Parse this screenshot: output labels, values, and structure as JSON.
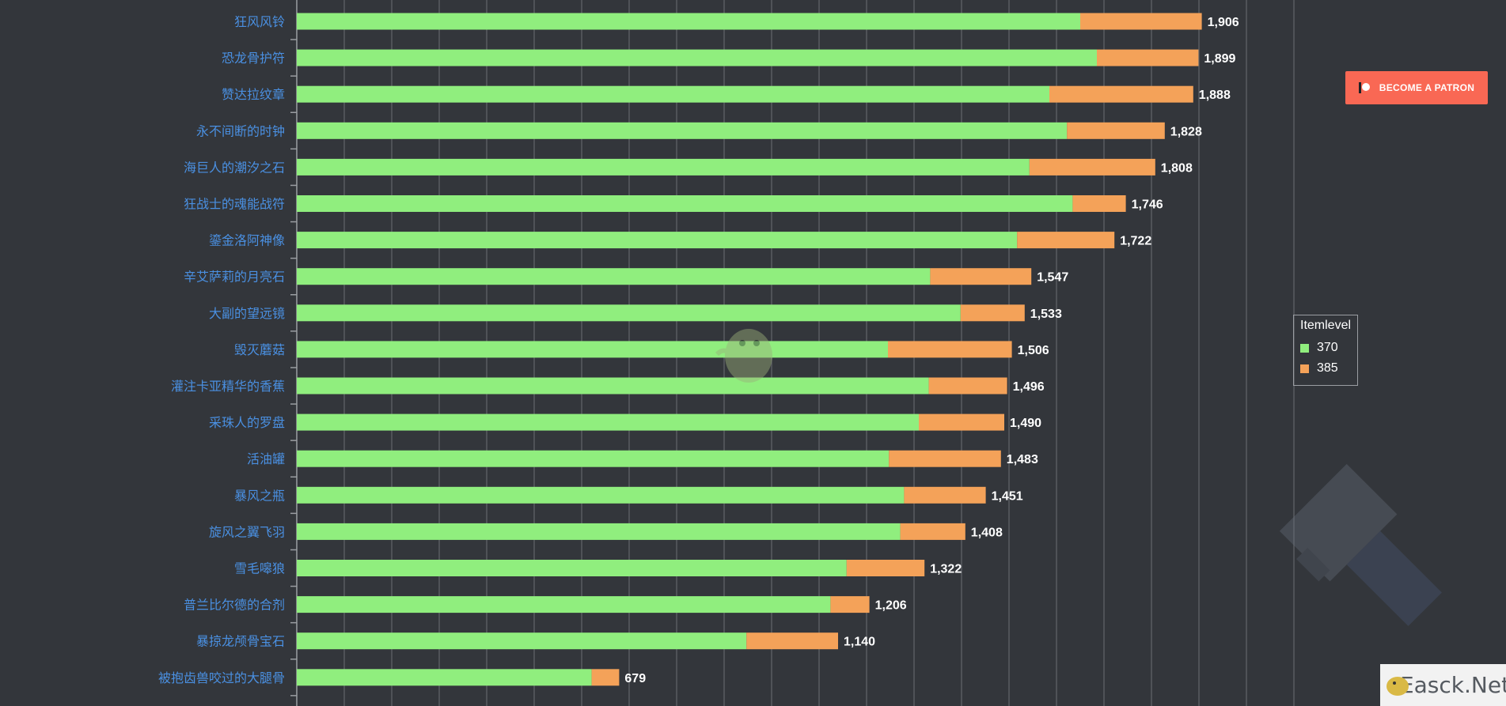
{
  "chart_data": {
    "type": "bar",
    "orientation": "horizontal",
    "stacked": true,
    "categories": [
      "狂风风铃",
      "恐龙骨护符",
      "赞达拉纹章",
      "永不间断的时钟",
      "海巨人的潮汐之石",
      "狂战士的魂能战符",
      "鎏金洛阿神像",
      "辛艾萨莉的月亮石",
      "大副的望远镜",
      "毁灭蘑菇",
      "灌注卡亚精华的香蕉",
      "采珠人的罗盘",
      "活油罐",
      "暴风之瓶",
      "旋风之翼飞羽",
      "雪毛嗥狼",
      "普兰比尔德的合剂",
      "暴掠龙颅骨宝石",
      "被抱齿兽咬过的大腿骨"
    ],
    "series": [
      {
        "name": "370",
        "color": "#90ee7e",
        "values": [
          1650,
          1685,
          1585,
          1622,
          1543,
          1634,
          1517,
          1334,
          1398,
          1245,
          1331,
          1310,
          1247,
          1279,
          1271,
          1158,
          1124,
          947,
          621
        ]
      },
      {
        "name": "385",
        "color": "#f4a259",
        "values": [
          256,
          214,
          303,
          206,
          265,
          112,
          205,
          213,
          135,
          261,
          165,
          180,
          236,
          172,
          137,
          164,
          82,
          193,
          58
        ]
      }
    ],
    "totals": [
      "1,906",
      "1,899",
      "1,888",
      "1,828",
      "1,808",
      "1,746",
      "1,722",
      "1,547",
      "1,533",
      "1,506",
      "1,496",
      "1,490",
      "1,483",
      "1,451",
      "1,408",
      "1,322",
      "1,206",
      "1,140",
      "679"
    ],
    "xlim": [
      0,
      2100
    ],
    "grid": true,
    "legend": {
      "title": "Itemlevel",
      "position": "right",
      "entries": [
        "370",
        "385"
      ]
    }
  },
  "patron": {
    "label": "BECOME A PATRON"
  },
  "watermark": {
    "text": "Easck.Net"
  },
  "icons": {
    "patron": "patreon-icon",
    "hammer": "hammer-icon",
    "mascot": "mascot-icon"
  }
}
